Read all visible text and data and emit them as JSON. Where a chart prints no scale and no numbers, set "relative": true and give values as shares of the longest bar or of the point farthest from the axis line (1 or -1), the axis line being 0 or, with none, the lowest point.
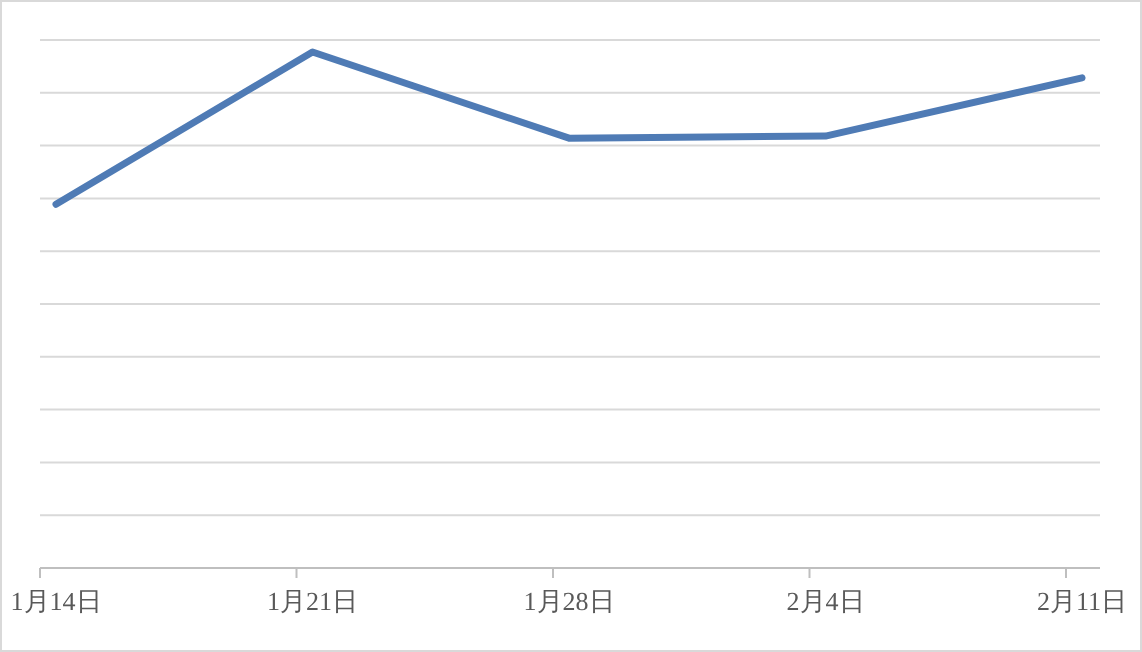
{
  "chart_data": {
    "type": "line",
    "relative": true,
    "categories": [
      "1月14日",
      "1月21日",
      "1月28日",
      "2月4日",
      "2月11日"
    ],
    "series": [
      {
        "color": "#4f7bb5",
        "values": [
          0.705,
          1,
          0.833,
          0.837,
          0.95
        ]
      }
    ],
    "grid": "y",
    "marker": "none",
    "line_style": "solid"
  }
}
